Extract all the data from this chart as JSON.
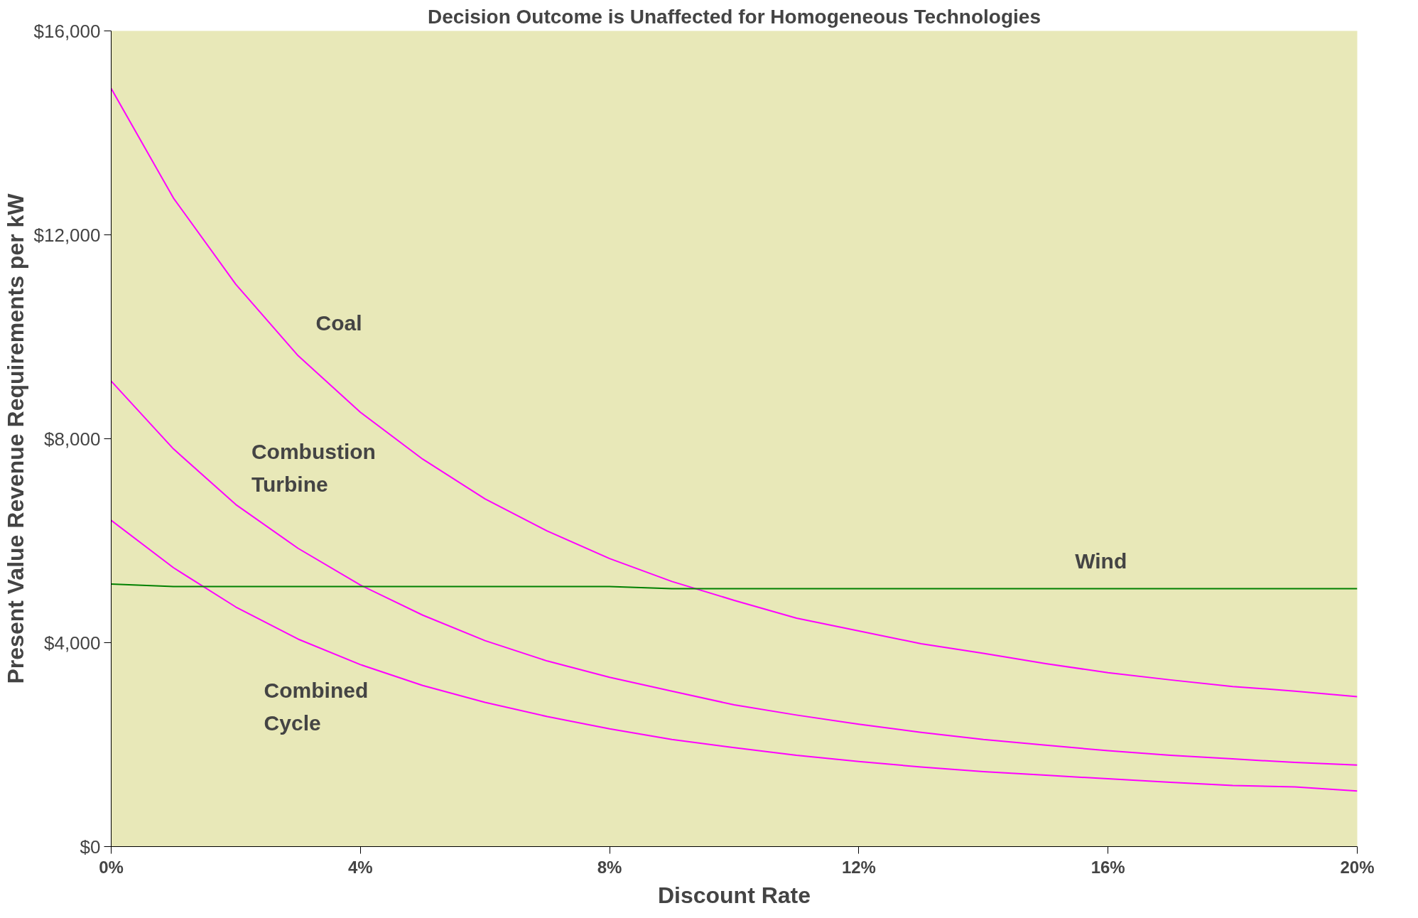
{
  "chart_data": {
    "type": "line",
    "title": "Decision Outcome is Unaffected for Homogeneous Technologies",
    "xlabel": "Discount Rate",
    "ylabel": "Present Value Revenue Requirements per kW",
    "x": [
      0,
      1,
      2,
      3,
      4,
      5,
      6,
      7,
      8,
      9,
      10,
      11,
      12,
      13,
      14,
      15,
      16,
      17,
      18,
      19,
      20
    ],
    "series": [
      {
        "name": "Coal",
        "color": "#ff00ff",
        "values": [
          14870,
          12720,
          11030,
          9630,
          8520,
          7600,
          6820,
          6190,
          5650,
          5200,
          4830,
          4480,
          4230,
          3980,
          3790,
          3590,
          3410,
          3270,
          3140,
          3050,
          2940
        ]
      },
      {
        "name": "Combustion Turbine",
        "color": "#ff00ff",
        "values": [
          9130,
          7800,
          6710,
          5850,
          5130,
          4540,
          4040,
          3640,
          3320,
          3050,
          2780,
          2580,
          2400,
          2240,
          2100,
          1990,
          1880,
          1790,
          1720,
          1650,
          1600
        ]
      },
      {
        "name": "Combined Cycle",
        "color": "#ff00ff",
        "values": [
          6400,
          5470,
          4700,
          4070,
          3570,
          3160,
          2830,
          2550,
          2310,
          2100,
          1940,
          1790,
          1670,
          1560,
          1470,
          1400,
          1330,
          1260,
          1200,
          1170,
          1090
        ]
      },
      {
        "name": "Wind",
        "color": "#008000",
        "values": [
          5150,
          5100,
          5100,
          5100,
          5100,
          5100,
          5100,
          5100,
          5100,
          5060,
          5060,
          5060,
          5060,
          5060,
          5060,
          5060,
          5060,
          5060,
          5060,
          5060,
          5060
        ]
      }
    ],
    "xlim": [
      0,
      20
    ],
    "xticks": [
      {
        "value": 0,
        "label": "0%"
      },
      {
        "value": 4,
        "label": "4%"
      },
      {
        "value": 8,
        "label": "8%"
      },
      {
        "value": 12,
        "label": "12%"
      },
      {
        "value": 16,
        "label": "16%"
      },
      {
        "value": 20,
        "label": "20%"
      }
    ],
    "ylim": [
      0,
      16000
    ],
    "yticks": [
      {
        "value": 0,
        "label": "$0"
      },
      {
        "value": 4000,
        "label": "$4,000"
      },
      {
        "value": 8000,
        "label": "$8,000"
      },
      {
        "value": 12000,
        "label": "$12,000"
      },
      {
        "value": 16000,
        "label": "$16,000"
      }
    ],
    "grid": false,
    "marker": "none",
    "line_style": "solid"
  }
}
